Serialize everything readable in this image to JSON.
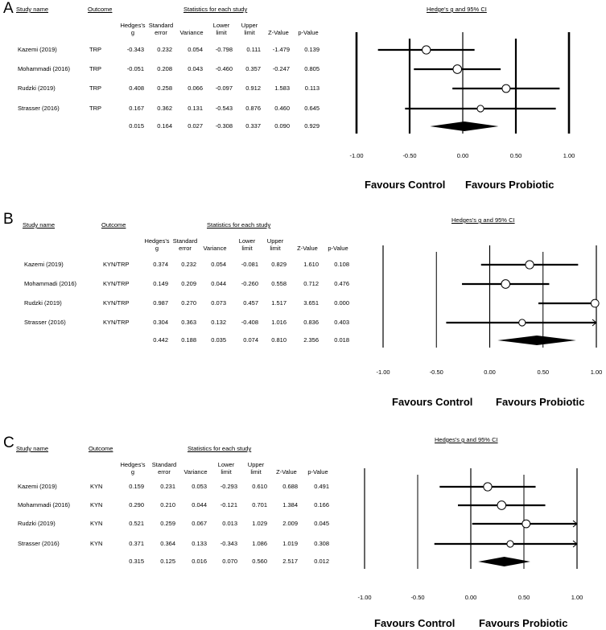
{
  "columns": {
    "study_name": "Study name",
    "outcome": "Outcome",
    "stats_title": "Statistics for each study",
    "hedges_g": [
      "Hedges's",
      "g"
    ],
    "standard_error": [
      "Standard",
      "error"
    ],
    "variance": "Variance",
    "lower_limit": [
      "Lower",
      "limit"
    ],
    "upper_limit": [
      "Upper",
      "limit"
    ],
    "z_value": "Z-Value",
    "p_value": "p-Value"
  },
  "favours": {
    "left": "Favours Control",
    "right": "Favours Probiotic"
  },
  "chart_data": [
    {
      "type": "forest",
      "panel": "A",
      "plot_title": "Hedge's g and 95% CI",
      "xlim": [
        -1.0,
        1.0
      ],
      "ticks": [
        "-1.00",
        "-0.50",
        "0.00",
        "0.50",
        "1.00"
      ],
      "studies": [
        {
          "name": "Kazemi (2019)",
          "outcome": "TRP",
          "g": "-0.343",
          "se": "0.232",
          "var": "0.054",
          "ll": "-0.798",
          "ul": "0.111",
          "z": "-1.479",
          "p": "0.139"
        },
        {
          "name": "Mohammadi (2016)",
          "outcome": "TRP",
          "g": "-0.051",
          "se": "0.208",
          "var": "0.043",
          "ll": "-0.460",
          "ul": "0.357",
          "z": "-0.247",
          "p": "0.805"
        },
        {
          "name": "Rudzki (2019)",
          "outcome": "TRP",
          "g": "0.408",
          "se": "0.258",
          "var": "0.066",
          "ll": "-0.097",
          "ul": "0.912",
          "z": "1.583",
          "p": "0.113"
        },
        {
          "name": "Strasser (2016)",
          "outcome": "TRP",
          "g": "0.167",
          "se": "0.362",
          "var": "0.131",
          "ll": "-0.543",
          "ul": "0.876",
          "z": "0.460",
          "p": "0.645"
        }
      ],
      "pooled": {
        "g": "0.015",
        "se": "0.164",
        "var": "0.027",
        "ll": "-0.308",
        "ul": "0.337",
        "z": "0.090",
        "p": "0.929"
      }
    },
    {
      "type": "forest",
      "panel": "B",
      "plot_title": "Hedges's g and 95% CI",
      "xlim": [
        -1.0,
        1.0
      ],
      "ticks": [
        "-1.00",
        "-0.50",
        "0.00",
        "0.50",
        "1.00"
      ],
      "studies": [
        {
          "name": "Kazemi (2019)",
          "outcome": "KYN/TRP",
          "g": "0.374",
          "se": "0.232",
          "var": "0.054",
          "ll": "-0.081",
          "ul": "0.829",
          "z": "1.610",
          "p": "0.108"
        },
        {
          "name": "Mohammadi (2016)",
          "outcome": "KYN/TRP",
          "g": "0.149",
          "se": "0.209",
          "var": "0.044",
          "ll": "-0.260",
          "ul": "0.558",
          "z": "0.712",
          "p": "0.476"
        },
        {
          "name": "Rudzki (2019)",
          "outcome": "KYN/TRP",
          "g": "0.987",
          "se": "0.270",
          "var": "0.073",
          "ll": "0.457",
          "ul": "1.517",
          "z": "3.651",
          "p": "0.000"
        },
        {
          "name": "Strasser (2016)",
          "outcome": "KYN/TRP",
          "g": "0.304",
          "se": "0.363",
          "var": "0.132",
          "ll": "-0.408",
          "ul": "1.016",
          "z": "0.836",
          "p": "0.403"
        }
      ],
      "pooled": {
        "g": "0.442",
        "se": "0.188",
        "var": "0.035",
        "ll": "0.074",
        "ul": "0.810",
        "z": "2.356",
        "p": "0.018"
      }
    },
    {
      "type": "forest",
      "panel": "C",
      "plot_title": "Hedges's g and 95% CI",
      "xlim": [
        -1.0,
        1.0
      ],
      "ticks": [
        "-1.00",
        "-0.50",
        "0.00",
        "0.50",
        "1.00"
      ],
      "studies": [
        {
          "name": "Kazemi (2019)",
          "outcome": "KYN",
          "g": "0.159",
          "se": "0.231",
          "var": "0.053",
          "ll": "-0.293",
          "ul": "0.610",
          "z": "0.688",
          "p": "0.491"
        },
        {
          "name": "Mohammadi (2016)",
          "outcome": "KYN",
          "g": "0.290",
          "se": "0.210",
          "var": "0.044",
          "ll": "-0.121",
          "ul": "0.701",
          "z": "1.384",
          "p": "0.166"
        },
        {
          "name": "Rudzki (2019)",
          "outcome": "KYN",
          "g": "0.521",
          "se": "0.259",
          "var": "0.067",
          "ll": "0.013",
          "ul": "1.029",
          "z": "2.009",
          "p": "0.045"
        },
        {
          "name": "Strasser (2016)",
          "outcome": "KYN",
          "g": "0.371",
          "se": "0.364",
          "var": "0.133",
          "ll": "-0.343",
          "ul": "1.086",
          "z": "1.019",
          "p": "0.308"
        }
      ],
      "pooled": {
        "g": "0.315",
        "se": "0.125",
        "var": "0.016",
        "ll": "0.070",
        "ul": "0.560",
        "z": "2.517",
        "p": "0.012"
      }
    }
  ]
}
